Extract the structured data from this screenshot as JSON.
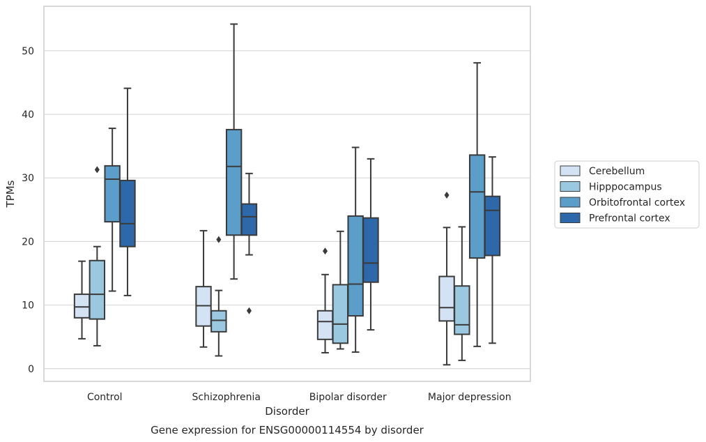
{
  "chart_data": {
    "type": "box",
    "title": "Gene expression for ENSG00000114554 by disorder",
    "xlabel": "Disorder",
    "ylabel": "TPMs",
    "ylim": [
      -2,
      57
    ],
    "yticks": [
      0,
      10,
      20,
      30,
      40,
      50
    ],
    "grid": "horizontal",
    "legend_position": "right",
    "categories": [
      "Control",
      "Schizophrenia",
      "Bipolar disorder",
      "Major depression"
    ],
    "series": [
      {
        "name": "Cerebellum",
        "color": "#d3e3f3",
        "boxes": [
          {
            "whislo": 4.7,
            "q1": 8.0,
            "med": 9.7,
            "q3": 11.7,
            "whishi": 16.9,
            "fliers": []
          },
          {
            "whislo": 3.4,
            "q1": 6.7,
            "med": 9.9,
            "q3": 12.9,
            "whishi": 21.7,
            "fliers": []
          },
          {
            "whislo": 2.5,
            "q1": 4.6,
            "med": 7.4,
            "q3": 9.1,
            "whishi": 14.8,
            "fliers": [
              18.5
            ]
          },
          {
            "whislo": 0.6,
            "q1": 7.5,
            "med": 9.6,
            "q3": 14.5,
            "whishi": 22.2,
            "fliers": [
              27.3
            ]
          }
        ]
      },
      {
        "name": "Hipppocampus",
        "color": "#9ac8e0",
        "boxes": [
          {
            "whislo": 3.6,
            "q1": 7.8,
            "med": 11.7,
            "q3": 17.0,
            "whishi": 19.2,
            "fliers": [
              31.3
            ]
          },
          {
            "whislo": 2.0,
            "q1": 5.8,
            "med": 7.6,
            "q3": 9.1,
            "whishi": 12.3,
            "fliers": [
              20.3
            ]
          },
          {
            "whislo": 3.1,
            "q1": 4.0,
            "med": 7.0,
            "q3": 13.2,
            "whishi": 21.6,
            "fliers": []
          },
          {
            "whislo": 1.3,
            "q1": 5.4,
            "med": 6.9,
            "q3": 13.0,
            "whishi": 22.3,
            "fliers": []
          }
        ]
      },
      {
        "name": "Orbitofrontal cortex",
        "color": "#5a9ec9",
        "boxes": [
          {
            "whislo": 12.2,
            "q1": 23.1,
            "med": 29.8,
            "q3": 31.9,
            "whishi": 37.8,
            "fliers": []
          },
          {
            "whislo": 14.1,
            "q1": 21.0,
            "med": 31.8,
            "q3": 37.6,
            "whishi": 54.2,
            "fliers": []
          },
          {
            "whislo": 2.6,
            "q1": 8.3,
            "med": 13.3,
            "q3": 24.0,
            "whishi": 34.8,
            "fliers": []
          },
          {
            "whislo": 3.5,
            "q1": 17.4,
            "med": 27.8,
            "q3": 33.6,
            "whishi": 48.1,
            "fliers": []
          }
        ]
      },
      {
        "name": "Prefrontal cortex",
        "color": "#2d69aa",
        "boxes": [
          {
            "whislo": 11.5,
            "q1": 19.2,
            "med": 22.8,
            "q3": 29.6,
            "whishi": 44.1,
            "fliers": []
          },
          {
            "whislo": 17.9,
            "q1": 21.0,
            "med": 23.9,
            "q3": 25.9,
            "whishi": 30.7,
            "fliers": [
              9.1
            ]
          },
          {
            "whislo": 6.1,
            "q1": 13.6,
            "med": 16.6,
            "q3": 23.7,
            "whishi": 33.0,
            "fliers": []
          },
          {
            "whislo": 4.0,
            "q1": 17.8,
            "med": 24.9,
            "q3": 27.1,
            "whishi": 33.3,
            "fliers": []
          }
        ]
      }
    ]
  }
}
